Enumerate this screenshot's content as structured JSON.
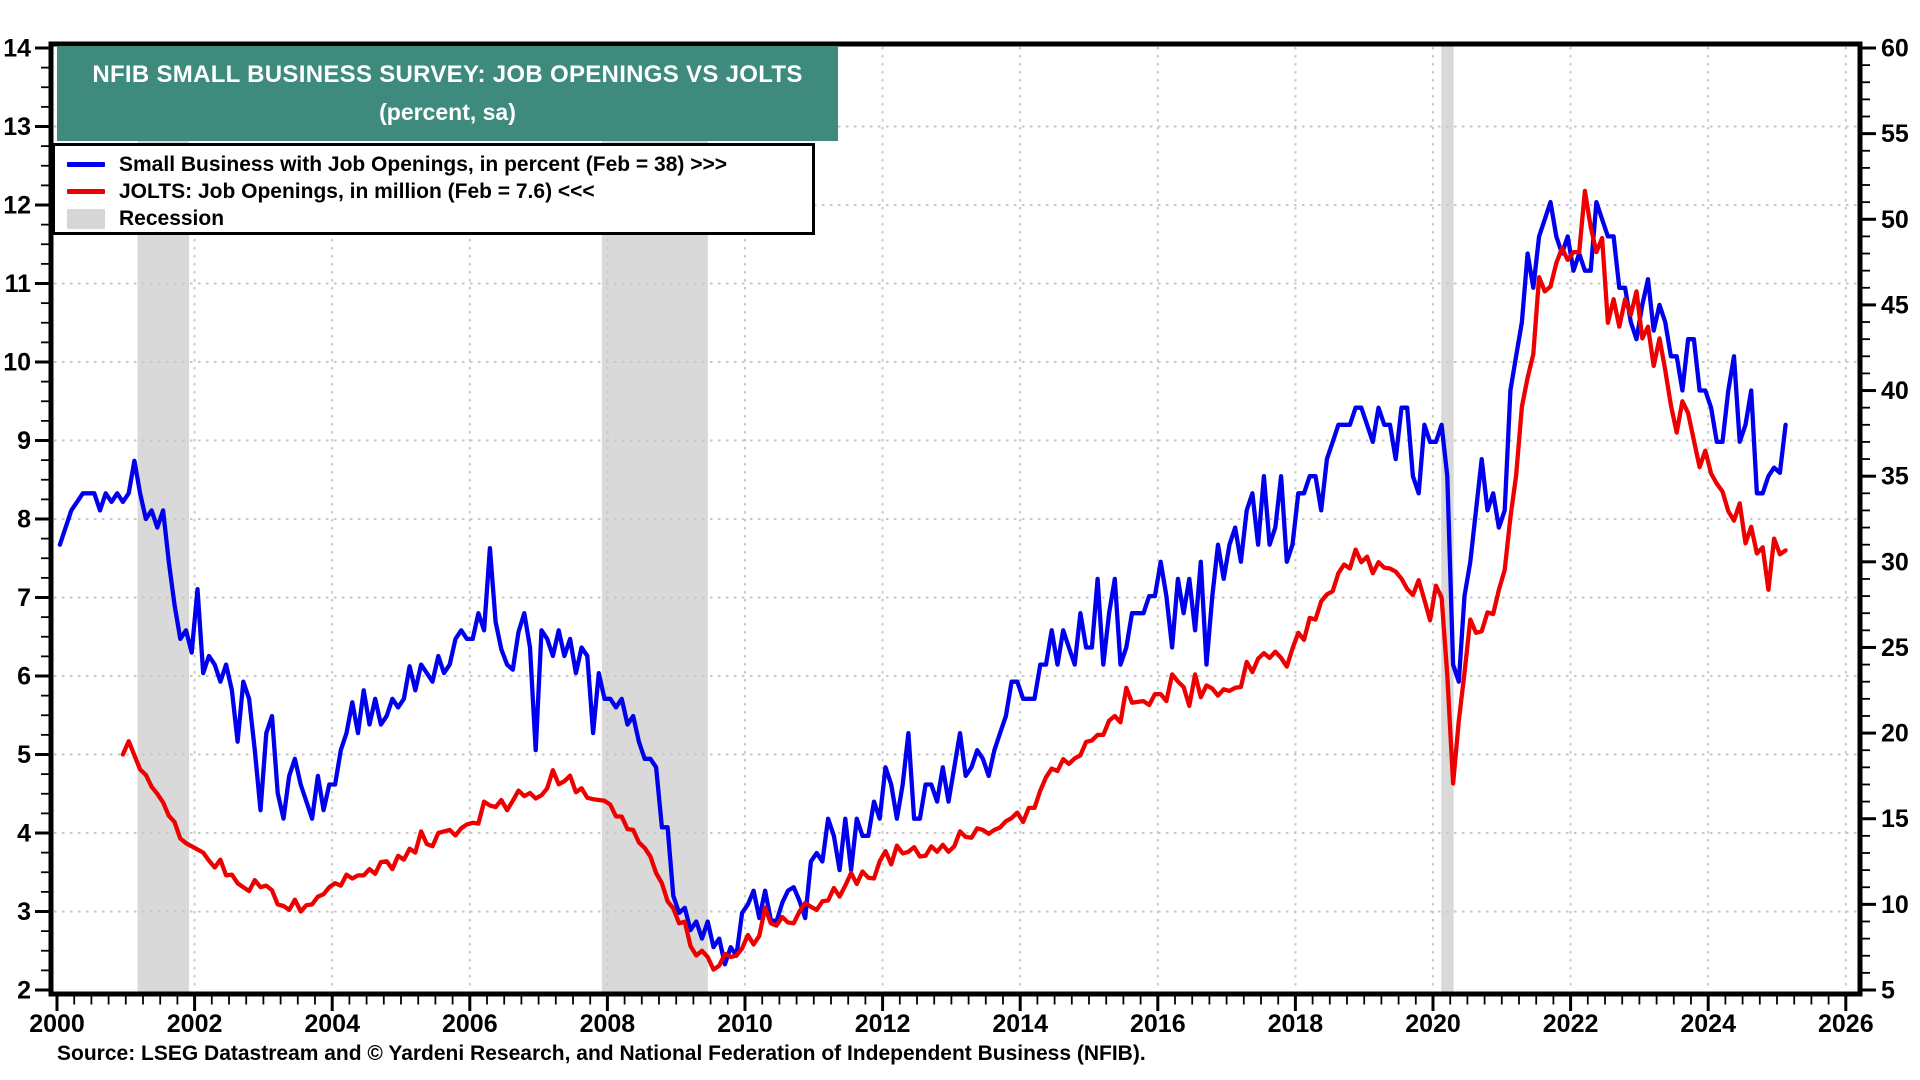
{
  "banner": {
    "title": "NFIB SMALL BUSINESS SURVEY: JOB OPENINGS VS JOLTS",
    "subtitle": "(percent, sa)",
    "bg_color": "#3E8B7D"
  },
  "legend": {
    "items": [
      {
        "label": "Small Business with Job Openings, in percent (Feb = 38) >>>",
        "swatch": "line",
        "color": "#0000EE"
      },
      {
        "label": "JOLTS: Job Openings, in million (Feb = 7.6) <<<",
        "swatch": "line",
        "color": "#EE0000"
      },
      {
        "label": "Recession",
        "swatch": "rect",
        "color": "#D6D6D6"
      }
    ]
  },
  "source": "Source: LSEG Datastream and © Yardeni Research, and National Federation of Independent Business (NFIB).",
  "chart_data": {
    "type": "line",
    "title": "NFIB SMALL BUSINESS SURVEY: JOB OPENINGS VS JOLTS (percent, sa)",
    "x_axis": {
      "min": 2000,
      "max": 2026,
      "tick_labels": [
        2000,
        2002,
        2004,
        2006,
        2008,
        2010,
        2012,
        2014,
        2016,
        2018,
        2020,
        2022,
        2024,
        2026
      ],
      "minor_tick_step": 0.25,
      "grid_years": [
        2002,
        2004,
        2006,
        2008,
        2010,
        2012,
        2014,
        2016,
        2018,
        2020,
        2022,
        2024,
        2026
      ]
    },
    "left_axis": {
      "min": 2,
      "max": 14,
      "tick_labels": [
        2,
        3,
        4,
        5,
        6,
        7,
        8,
        9,
        10,
        11,
        12,
        13,
        14
      ],
      "minor_tick_step": 0.25,
      "grid_values": [
        3,
        4,
        5,
        6,
        7,
        8,
        9,
        10,
        11,
        12,
        13
      ],
      "series": "JOLTS: Job Openings (million)"
    },
    "right_axis": {
      "min": 5,
      "max": 60,
      "tick_labels": [
        5,
        10,
        15,
        20,
        25,
        30,
        35,
        40,
        45,
        50,
        55,
        60
      ],
      "minor_tick_step": 1,
      "series": "Small Business with Job Openings (percent)"
    },
    "grid": {
      "style": "dotted",
      "color": "#C8C8C8"
    },
    "recession_color": "#D9D9D9",
    "recessions": [
      [
        2001.17,
        2001.92
      ],
      [
        2007.92,
        2009.46
      ],
      [
        2020.12,
        2020.3
      ]
    ],
    "series": [
      {
        "name": "Small Business with Job Openings, in percent (Feb = 38) >>>",
        "axis": "right",
        "color": "#0000EE",
        "start_year": 2000.0417,
        "step_years": 0.0833333,
        "last_label": "Feb = 38",
        "values": [
          31,
          32,
          33,
          33.5,
          34,
          34,
          34,
          33,
          34,
          33.5,
          34,
          33.5,
          34,
          35.9,
          34,
          32.5,
          33,
          32,
          33,
          30,
          27.5,
          25.5,
          26,
          24.7,
          28.4,
          23.5,
          24.5,
          24,
          23,
          24,
          22.5,
          19.5,
          23,
          22,
          19,
          15.5,
          20,
          21,
          16.5,
          15,
          17.5,
          18.5,
          17,
          16,
          15,
          17.5,
          15.5,
          17,
          17,
          19,
          20,
          21.8,
          20,
          22.5,
          20.5,
          22,
          20.5,
          21,
          22,
          21.5,
          22,
          23.9,
          22.5,
          24,
          23.5,
          23,
          24.5,
          23.5,
          24,
          25.5,
          26,
          25.5,
          25.5,
          27,
          26,
          30.8,
          26.5,
          24.9,
          24,
          23.7,
          25.9,
          27,
          25,
          19,
          26,
          25.5,
          24.5,
          26,
          24.5,
          25.5,
          23.5,
          25,
          24.5,
          20,
          23.5,
          22,
          22,
          21.5,
          22,
          20.5,
          21,
          19.5,
          18.5,
          18.5,
          18,
          14.5,
          14.5,
          10.5,
          9.5,
          9.8,
          8.5,
          9,
          8,
          9,
          7.5,
          8,
          6.5,
          7.5,
          7,
          9.5,
          10,
          10.8,
          9.2,
          10.8,
          9.1,
          9,
          10.1,
          10.8,
          11,
          10.2,
          9.2,
          12.5,
          13,
          12.5,
          15,
          14,
          12,
          15,
          12,
          15,
          14,
          14,
          16,
          15,
          18,
          17,
          15,
          17,
          20,
          15,
          15,
          17,
          17,
          16,
          18,
          16,
          18,
          20,
          17.5,
          18,
          19,
          18.5,
          17.5,
          19,
          20,
          21,
          23,
          23,
          22,
          22,
          22,
          24,
          24,
          26,
          24,
          26,
          25,
          24,
          27,
          25,
          25,
          29,
          24,
          27,
          29,
          24,
          25,
          27,
          27,
          27,
          28,
          28,
          30,
          28,
          25,
          29,
          27,
          29,
          26,
          30,
          24,
          28,
          31,
          29,
          31,
          32,
          30,
          33,
          34,
          31,
          35,
          31,
          32,
          35,
          30,
          31,
          34,
          34,
          35,
          35,
          33,
          36,
          37,
          38,
          38,
          38,
          39,
          39,
          38,
          37,
          39,
          38,
          38,
          36,
          39,
          39,
          35,
          34,
          38,
          37,
          37,
          38,
          35,
          24,
          23,
          28,
          30,
          33,
          36,
          33,
          34,
          32,
          33,
          40,
          42,
          44,
          48,
          46,
          49,
          50,
          51,
          49,
          48,
          49,
          47,
          48,
          47,
          47,
          51,
          50,
          49,
          49,
          46,
          46,
          44,
          43,
          45,
          46.5,
          43.5,
          45,
          44,
          42,
          42,
          40,
          43,
          43,
          40,
          40,
          39,
          37,
          37,
          40,
          42,
          37,
          38,
          40,
          34,
          34,
          35,
          35.5,
          35.2,
          38
        ]
      },
      {
        "name": "JOLTS: Job Openings, in million (Feb = 7.6) <<<",
        "axis": "left",
        "color": "#EE0000",
        "start_year": 2000.9583,
        "step_years": 0.0833333,
        "last_label": "Feb = 7.6",
        "values": [
          5.0,
          5.17,
          4.99,
          4.81,
          4.74,
          4.59,
          4.5,
          4.39,
          4.22,
          4.14,
          3.93,
          3.87,
          3.83,
          3.79,
          3.75,
          3.65,
          3.56,
          3.66,
          3.46,
          3.47,
          3.36,
          3.31,
          3.26,
          3.4,
          3.31,
          3.33,
          3.27,
          3.09,
          3.07,
          3.02,
          3.15,
          3.0,
          3.08,
          3.09,
          3.19,
          3.22,
          3.31,
          3.36,
          3.33,
          3.47,
          3.42,
          3.46,
          3.46,
          3.54,
          3.48,
          3.63,
          3.64,
          3.54,
          3.71,
          3.66,
          3.8,
          3.75,
          4.02,
          3.86,
          3.83,
          4.0,
          4.02,
          4.04,
          3.97,
          4.06,
          4.11,
          4.13,
          4.12,
          4.4,
          4.35,
          4.33,
          4.42,
          4.29,
          4.41,
          4.54,
          4.47,
          4.51,
          4.44,
          4.48,
          4.57,
          4.8,
          4.62,
          4.66,
          4.73,
          4.52,
          4.57,
          4.45,
          4.43,
          4.42,
          4.41,
          4.36,
          4.21,
          4.21,
          4.05,
          4.04,
          3.88,
          3.81,
          3.7,
          3.49,
          3.36,
          3.13,
          3.04,
          2.85,
          2.87,
          2.56,
          2.44,
          2.5,
          2.42,
          2.26,
          2.31,
          2.46,
          2.42,
          2.44,
          2.53,
          2.7,
          2.58,
          2.69,
          3.05,
          2.85,
          2.82,
          2.93,
          2.86,
          2.85,
          3.0,
          3.11,
          3.06,
          3.02,
          3.13,
          3.14,
          3.3,
          3.19,
          3.33,
          3.49,
          3.35,
          3.51,
          3.43,
          3.42,
          3.64,
          3.77,
          3.6,
          3.84,
          3.74,
          3.76,
          3.82,
          3.7,
          3.71,
          3.83,
          3.76,
          3.85,
          3.76,
          3.83,
          4.02,
          3.95,
          3.94,
          4.06,
          4.04,
          3.99,
          4.04,
          4.07,
          4.15,
          4.19,
          4.26,
          4.14,
          4.32,
          4.32,
          4.54,
          4.71,
          4.82,
          4.79,
          4.94,
          4.88,
          4.95,
          4.99,
          5.16,
          5.18,
          5.25,
          5.25,
          5.43,
          5.49,
          5.41,
          5.85,
          5.66,
          5.67,
          5.68,
          5.63,
          5.77,
          5.77,
          5.68,
          6.02,
          5.93,
          5.86,
          5.62,
          6.02,
          5.73,
          5.88,
          5.84,
          5.75,
          5.83,
          5.81,
          5.85,
          5.86,
          6.18,
          6.05,
          6.22,
          6.29,
          6.23,
          6.31,
          6.23,
          6.12,
          6.35,
          6.55,
          6.46,
          6.74,
          6.72,
          6.95,
          7.04,
          7.08,
          7.31,
          7.42,
          7.37,
          7.61,
          7.45,
          7.52,
          7.31,
          7.45,
          7.38,
          7.37,
          7.33,
          7.24,
          7.11,
          7.03,
          7.22,
          6.97,
          6.71,
          7.15,
          7.0,
          6.01,
          4.63,
          5.43,
          6.04,
          6.72,
          6.55,
          6.57,
          6.81,
          6.79,
          7.1,
          7.35,
          8.02,
          8.55,
          9.43,
          9.8,
          10.1,
          11.08,
          10.9,
          10.96,
          11.26,
          11.45,
          11.3,
          11.4,
          11.4,
          12.18,
          11.72,
          11.4,
          11.58,
          10.5,
          10.8,
          10.45,
          10.8,
          10.6,
          10.9,
          10.3,
          10.45,
          9.95,
          10.3,
          9.9,
          9.45,
          9.1,
          9.5,
          9.35,
          9.0,
          8.66,
          8.87,
          8.58,
          8.45,
          8.35,
          8.1,
          7.98,
          8.2,
          7.69,
          7.9,
          7.56,
          7.64,
          7.1,
          7.75,
          7.55,
          7.6
        ]
      }
    ]
  }
}
